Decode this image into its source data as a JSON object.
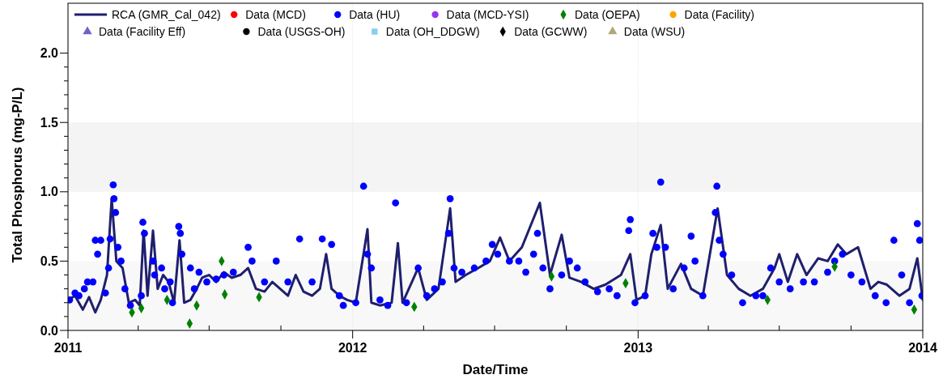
{
  "chart_data": {
    "type": "scatter",
    "xlabel": "Date/Time",
    "ylabel": "Total Phosphorus (mg-P/L)",
    "xlim": [
      "2011",
      "2014"
    ],
    "xticks": [
      "2011",
      {
        "value": "2011-04",
        "label": null
      },
      {
        "value": "2011-07",
        "label": null
      },
      {
        "value": "2011-10",
        "label": null
      },
      "2012",
      {
        "value": "2012-04",
        "label": null
      },
      {
        "value": "2012-07",
        "label": null
      },
      {
        "value": "2012-10",
        "label": null
      },
      "2013",
      {
        "value": "2013-04",
        "label": null
      },
      {
        "value": "2013-07",
        "label": null
      },
      {
        "value": "2013-10",
        "label": null
      },
      "2014"
    ],
    "ylim": [
      0,
      2.36
    ],
    "yticks": [
      {
        "value": 0,
        "label": "0.0"
      },
      {
        "value": 0.1,
        "label": null
      },
      {
        "value": 0.2,
        "label": null
      },
      {
        "value": 0.3,
        "label": null
      },
      {
        "value": 0.4,
        "label": null
      },
      {
        "value": 0.5,
        "label": "0.5"
      },
      {
        "value": 0.6,
        "label": null
      },
      {
        "value": 0.7,
        "label": null
      },
      {
        "value": 0.8,
        "label": null
      },
      {
        "value": 0.9,
        "label": null
      },
      {
        "value": 1,
        "label": "1.0"
      },
      {
        "value": 1.1,
        "label": null
      },
      {
        "value": 1.2,
        "label": null
      },
      {
        "value": 1.3,
        "label": null
      },
      {
        "value": 1.4,
        "label": null
      },
      {
        "value": 1.5,
        "label": "1.5"
      },
      {
        "value": 1.6,
        "label": null
      },
      {
        "value": 1.7,
        "label": null
      },
      {
        "value": 1.8,
        "label": null
      },
      {
        "value": 1.9,
        "label": null
      },
      {
        "value": 2,
        "label": "2.0"
      }
    ],
    "grid": "x",
    "legend": "top",
    "bands": [
      {
        "axis": "y",
        "from": 0,
        "to": 0.5,
        "color": "#f8f8f8"
      },
      {
        "axis": "y",
        "from": 1,
        "to": 1.5,
        "color": "#f4f4f4"
      }
    ],
    "series": [
      {
        "name": "RCA (GMR_Cal_042)",
        "type": "line",
        "color": "#1f1f6e",
        "marker": "none",
        "x": [
          "2011-01-01",
          "2011-01-10",
          "2011-01-20",
          "2011-01-28",
          "2011-02-05",
          "2011-02-12",
          "2011-02-20",
          "2011-02-26",
          "2011-03-04",
          "2011-03-12",
          "2011-03-20",
          "2011-03-28",
          "2011-04-03",
          "2011-04-08",
          "2011-04-13",
          "2011-04-20",
          "2011-04-26",
          "2011-05-03",
          "2011-05-10",
          "2011-05-17",
          "2011-05-24",
          "2011-05-30",
          "2011-06-07",
          "2011-06-15",
          "2011-06-22",
          "2011-07-01",
          "2011-07-10",
          "2011-07-20",
          "2011-07-30",
          "2011-08-10",
          "2011-08-20",
          "2011-08-30",
          "2011-09-10",
          "2011-09-20",
          "2011-09-30",
          "2011-10-10",
          "2011-10-20",
          "2011-10-30",
          "2011-11-10",
          "2011-11-20",
          "2011-11-28",
          "2011-12-05",
          "2011-12-15",
          "2011-12-25",
          "2012-01-05",
          "2012-01-20",
          "2012-01-25",
          "2012-02-05",
          "2012-02-20",
          "2012-02-28",
          "2012-03-05",
          "2012-03-25",
          "2012-04-05",
          "2012-04-20",
          "2012-05-05",
          "2012-05-12",
          "2012-05-25",
          "2012-06-10",
          "2012-06-25",
          "2012-07-08",
          "2012-07-20",
          "2012-08-05",
          "2012-08-28",
          "2012-09-10",
          "2012-09-25",
          "2012-10-05",
          "2012-10-20",
          "2012-11-05",
          "2012-11-20",
          "2012-12-10",
          "2012-12-22",
          "2012-12-30",
          "2013-01-10",
          "2013-01-18",
          "2013-01-30",
          "2013-02-08",
          "2013-02-25",
          "2013-03-10",
          "2013-03-25",
          "2013-04-13",
          "2013-04-25",
          "2013-05-10",
          "2013-05-25",
          "2013-06-10",
          "2013-06-25",
          "2013-07-01",
          "2013-07-12",
          "2013-07-24",
          "2013-08-05",
          "2013-08-20",
          "2013-09-01",
          "2013-09-14",
          "2013-09-25",
          "2013-10-10",
          "2013-10-26",
          "2013-11-05",
          "2013-11-16",
          "2013-12-02",
          "2013-12-15",
          "2013-12-25",
          "2014-01-01"
        ],
        "values": [
          0.22,
          0.25,
          0.15,
          0.24,
          0.13,
          0.22,
          0.4,
          0.95,
          0.5,
          0.45,
          0.2,
          0.22,
          0.18,
          0.72,
          0.25,
          0.72,
          0.3,
          0.4,
          0.35,
          0.2,
          0.65,
          0.2,
          0.22,
          0.3,
          0.38,
          0.4,
          0.35,
          0.42,
          0.38,
          0.4,
          0.45,
          0.3,
          0.28,
          0.35,
          0.3,
          0.25,
          0.4,
          0.28,
          0.25,
          0.3,
          0.55,
          0.3,
          0.25,
          0.22,
          0.2,
          0.73,
          0.2,
          0.18,
          0.2,
          0.63,
          0.2,
          0.45,
          0.22,
          0.3,
          0.88,
          0.35,
          0.4,
          0.45,
          0.5,
          0.67,
          0.5,
          0.6,
          0.92,
          0.4,
          0.69,
          0.38,
          0.35,
          0.3,
          0.33,
          0.4,
          0.55,
          0.22,
          0.25,
          0.55,
          0.76,
          0.3,
          0.48,
          0.3,
          0.25,
          0.88,
          0.4,
          0.3,
          0.25,
          0.3,
          0.45,
          0.55,
          0.35,
          0.55,
          0.4,
          0.52,
          0.5,
          0.62,
          0.55,
          0.6,
          0.3,
          0.35,
          0.33,
          0.25,
          0.3,
          0.52,
          0.22
        ]
      },
      {
        "name": "Data (MCD)",
        "color": "#ff0000",
        "marker": "circle"
      },
      {
        "name": "Data (HU)",
        "color": "#0000ff",
        "marker": "circle",
        "x": [
          "2011-01-03",
          "2011-01-10",
          "2011-01-15",
          "2011-01-22",
          "2011-01-26",
          "2011-02-02",
          "2011-02-05",
          "2011-02-08",
          "2011-02-12",
          "2011-02-18",
          "2011-02-22",
          "2011-02-24",
          "2011-02-28",
          "2011-03-01",
          "2011-03-03",
          "2011-03-06",
          "2011-03-10",
          "2011-03-15",
          "2011-03-22",
          "2011-04-05",
          "2011-04-07",
          "2011-04-09",
          "2011-04-20",
          "2011-04-22",
          "2011-05-01",
          "2011-05-05",
          "2011-05-12",
          "2011-05-15",
          "2011-05-23",
          "2011-05-25",
          "2011-05-27",
          "2011-06-07",
          "2011-06-12",
          "2011-06-18",
          "2011-06-28",
          "2011-07-10",
          "2011-07-20",
          "2011-08-01",
          "2011-08-20",
          "2011-08-25",
          "2011-09-10",
          "2011-09-25",
          "2011-10-10",
          "2011-10-25",
          "2011-11-10",
          "2011-11-23",
          "2011-12-05",
          "2011-12-15",
          "2011-12-20",
          "2012-01-05",
          "2012-01-15",
          "2012-01-20",
          "2012-01-25",
          "2012-02-05",
          "2012-02-15",
          "2012-02-25",
          "2012-03-10",
          "2012-03-25",
          "2012-04-05",
          "2012-04-15",
          "2012-04-25",
          "2012-05-03",
          "2012-05-05",
          "2012-05-10",
          "2012-05-20",
          "2012-06-05",
          "2012-06-20",
          "2012-06-28",
          "2012-07-05",
          "2012-07-20",
          "2012-08-01",
          "2012-08-10",
          "2012-08-20",
          "2012-08-25",
          "2012-09-01",
          "2012-09-10",
          "2012-09-25",
          "2012-10-05",
          "2012-10-15",
          "2012-10-25",
          "2012-11-10",
          "2012-11-25",
          "2012-12-05",
          "2012-12-20",
          "2012-12-22",
          "2012-12-28",
          "2013-01-10",
          "2013-01-20",
          "2013-01-25",
          "2013-01-30",
          "2013-02-05",
          "2013-02-15",
          "2013-03-01",
          "2013-03-10",
          "2013-03-15",
          "2013-03-25",
          "2013-04-10",
          "2013-04-12",
          "2013-04-15",
          "2013-04-20",
          "2013-05-01",
          "2013-05-15",
          "2013-06-01",
          "2013-06-10",
          "2013-06-20",
          "2013-07-01",
          "2013-07-15",
          "2013-08-01",
          "2013-08-15",
          "2013-09-01",
          "2013-09-10",
          "2013-09-20",
          "2013-10-01",
          "2013-10-15",
          "2013-11-01",
          "2013-11-15",
          "2013-11-25",
          "2013-12-05",
          "2013-12-15",
          "2013-12-25",
          "2013-12-28",
          "2013-12-31"
        ],
        "values": [
          0.22,
          0.27,
          0.25,
          0.3,
          0.35,
          0.35,
          0.65,
          0.55,
          0.65,
          0.27,
          0.45,
          0.66,
          1.05,
          0.95,
          0.85,
          0.6,
          0.5,
          0.3,
          0.18,
          0.25,
          0.78,
          0.7,
          0.5,
          0.4,
          0.45,
          0.3,
          0.35,
          0.2,
          0.75,
          0.7,
          0.55,
          0.45,
          0.3,
          0.42,
          0.35,
          0.37,
          0.4,
          0.42,
          0.6,
          0.5,
          0.35,
          0.5,
          0.35,
          0.66,
          0.35,
          0.66,
          0.62,
          0.25,
          0.18,
          0.2,
          1.04,
          0.55,
          0.45,
          0.22,
          0.18,
          0.92,
          0.2,
          0.45,
          0.25,
          0.3,
          0.35,
          0.7,
          0.95,
          0.45,
          0.42,
          0.45,
          0.5,
          0.62,
          0.55,
          0.5,
          0.5,
          0.42,
          0.55,
          0.7,
          0.45,
          0.3,
          0.4,
          0.5,
          0.45,
          0.35,
          0.28,
          0.3,
          0.25,
          0.72,
          0.8,
          0.2,
          0.25,
          0.7,
          0.6,
          1.07,
          0.6,
          0.3,
          0.45,
          0.68,
          0.5,
          0.25,
          0.85,
          1.04,
          0.65,
          0.55,
          0.4,
          0.2,
          0.25,
          0.25,
          0.45,
          0.35,
          0.3,
          0.35,
          0.35,
          0.42,
          0.5,
          0.55,
          0.4,
          0.35,
          0.25,
          0.2,
          0.65,
          0.4,
          0.2,
          0.77,
          0.65,
          0.25
        ]
      },
      {
        "name": "Data (MCD-YSI)",
        "color": "#9933ee",
        "marker": "circle"
      },
      {
        "name": "Data (OEPA)",
        "color": "#008000",
        "marker": "diamond",
        "x": [
          "2011-03-24",
          "2011-04-05",
          "2011-05-08",
          "2011-06-06",
          "2011-06-15",
          "2011-07-17",
          "2011-07-21",
          "2011-09-03",
          "2012-03-20",
          "2012-09-12",
          "2012-12-16",
          "2013-06-16",
          "2013-09-10",
          "2013-12-21"
        ],
        "values": [
          0.13,
          0.16,
          0.22,
          0.05,
          0.18,
          0.5,
          0.26,
          0.24,
          0.17,
          0.39,
          0.34,
          0.22,
          0.46,
          0.15
        ]
      },
      {
        "name": "Data (Facility)",
        "color": "#ffa500",
        "marker": "circle"
      },
      {
        "name": "Data (Facility Eff)",
        "color": "#7060c8",
        "marker": "triangle"
      },
      {
        "name": "Data (USGS-OH)",
        "color": "#000000",
        "marker": "circle"
      },
      {
        "name": "Data (OH_DDGW)",
        "color": "#87ceeb",
        "marker": "square"
      },
      {
        "name": "Data (GCWW)",
        "color": "#000000",
        "marker": "diamond"
      },
      {
        "name": "Data (WSU)",
        "color": "#b0a878",
        "marker": "triangle"
      }
    ]
  }
}
